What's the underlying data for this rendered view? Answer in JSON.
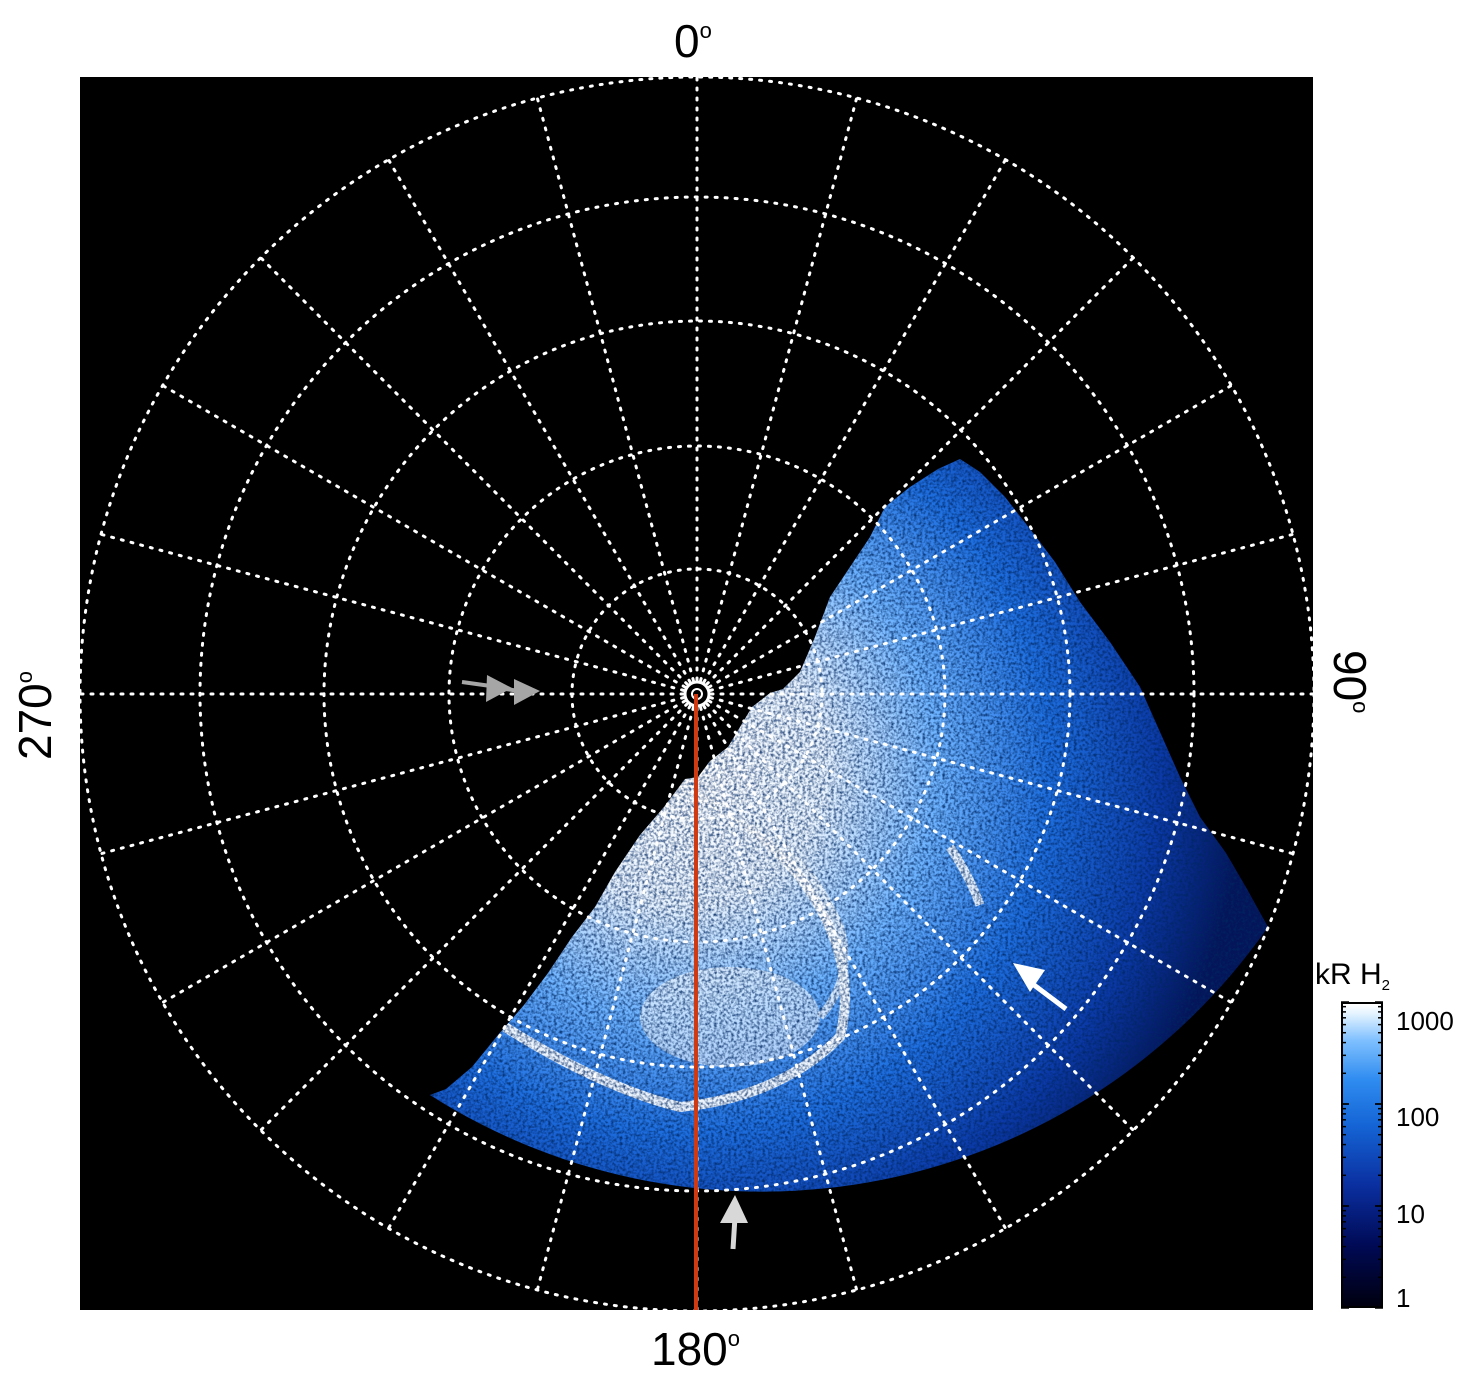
{
  "axis_labels": {
    "top": "0",
    "right": "90",
    "bottom": "180",
    "left": "270",
    "degree_symbol": "o"
  },
  "colorbar": {
    "title_main": "kR H",
    "title_sub": "2",
    "ticks": [
      "1000",
      "100",
      "10",
      "1"
    ],
    "scale": "log",
    "range": [
      1,
      1000
    ]
  },
  "colors": {
    "background": "#000000",
    "grid": "#ffffff",
    "meridian_line": "#d03a12",
    "emission_low": "#000a55",
    "emission_mid": "#1e78e6",
    "emission_high": "#ffffff",
    "arrow_gray": "#a6a6a6",
    "arrow_white": "#ffffff"
  },
  "grid": {
    "parallel_rings": 5,
    "meridian_spacing_deg": 15,
    "line_style": "dotted"
  },
  "arrows": [
    {
      "name": "gray-arrow-left",
      "color": "gray"
    },
    {
      "name": "white-arrow-right",
      "color": "white"
    },
    {
      "name": "gray-arrow-bottom",
      "color": "gray"
    }
  ]
}
